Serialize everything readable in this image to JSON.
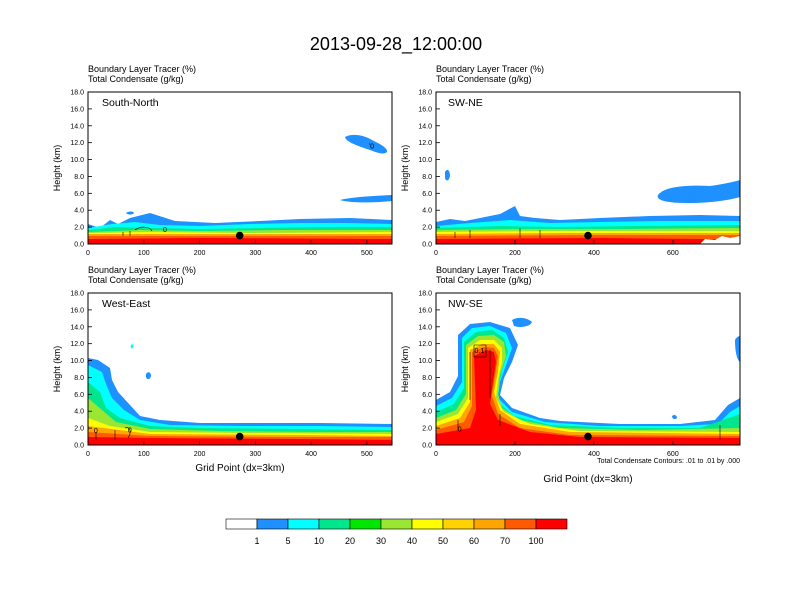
{
  "figure": {
    "title": "2013-09-28_12:00:00",
    "footnote": "Total Condensate Contours: .01 to .01 by .000"
  },
  "colorbar": {
    "colors": [
      "#ffffff",
      "#1e90ff",
      "#00ffff",
      "#00e68c",
      "#00e600",
      "#9be632",
      "#ffff00",
      "#ffd200",
      "#ffa500",
      "#ff5a00",
      "#ff0000"
    ],
    "labels": [
      "1",
      "5",
      "10",
      "20",
      "30",
      "40",
      "50",
      "60",
      "70",
      "100"
    ]
  },
  "chart_data": [
    {
      "type": "contour",
      "panel": "top-left",
      "name": "South-North",
      "title_lines": [
        "Boundary Layer Tracer    (%)",
        "Total Condensate    (g/kg)"
      ],
      "ylabel": "Height (km)",
      "xlabel": "",
      "xlim": [
        0,
        545
      ],
      "ylim": [
        0,
        18
      ],
      "xticks": [
        0,
        100,
        200,
        300,
        400,
        500
      ],
      "xtick_labels": [
        "0",
        "100",
        "200",
        "300",
        "400",
        "500"
      ],
      "yticks": [
        0,
        2,
        4,
        6,
        8,
        10,
        12,
        14,
        16,
        18
      ],
      "ytick_labels": [
        "0.0",
        "2.0",
        "4.0",
        "6.0",
        "8.0",
        "10.0",
        "12.0",
        "14.0",
        "16.0",
        "18.0"
      ],
      "marker": {
        "x": 272,
        "y": 1.0
      },
      "contour_labels": [
        {
          "x": 138,
          "y": 1.4,
          "text": "0"
        },
        {
          "x": 508,
          "y": 11.3,
          "text": "ʻ0"
        }
      ]
    },
    {
      "type": "contour",
      "panel": "top-right",
      "name": "SW-NE",
      "title_lines": [
        "Boundary Layer Tracer    (%)",
        "Total Condensate    (g/kg)"
      ],
      "ylabel": "Height (km)",
      "xlabel": "",
      "xlim": [
        0,
        770
      ],
      "ylim": [
        0,
        18
      ],
      "xticks": [
        0,
        200,
        400,
        600
      ],
      "xtick_labels": [
        "0",
        "200",
        "400",
        "600"
      ],
      "yticks": [
        0,
        2,
        4,
        6,
        8,
        10,
        12,
        14,
        16,
        18
      ],
      "ytick_labels": [
        "0.0",
        "2.0",
        "4.0",
        "6.0",
        "8.0",
        "10.0",
        "12.0",
        "14.0",
        "16.0",
        "18.0"
      ],
      "marker": {
        "x": 385,
        "y": 1.0
      },
      "contour_labels": []
    },
    {
      "type": "contour",
      "panel": "bottom-left",
      "name": "West-East",
      "title_lines": [
        "Boundary Layer Tracer    (%)",
        "Total Condensate    (g/kg)"
      ],
      "ylabel": "Height (km)",
      "xlabel": "Grid Point (dx=3km)",
      "xlim": [
        0,
        545
      ],
      "ylim": [
        0,
        18
      ],
      "xticks": [
        0,
        100,
        200,
        300,
        400,
        500
      ],
      "xtick_labels": [
        "0",
        "100",
        "200",
        "300",
        "400",
        "500"
      ],
      "yticks": [
        0,
        2,
        4,
        6,
        8,
        10,
        12,
        14,
        16,
        18
      ],
      "ytick_labels": [
        "0.0",
        "2.0",
        "4.0",
        "6.0",
        "8.0",
        "10.0",
        "12.0",
        "14.0",
        "16.0",
        "18.0"
      ],
      "marker": {
        "x": 272,
        "y": 1.0
      },
      "contour_labels": [
        {
          "x": 14,
          "y": 1.4,
          "text": "0"
        },
        {
          "x": 75,
          "y": 1.5,
          "text": "0"
        }
      ]
    },
    {
      "type": "contour",
      "panel": "bottom-right",
      "name": "NW-SE",
      "title_lines": [
        "Boundary Layer Tracer    (%)",
        "Total Condensate    (g/kg)"
      ],
      "ylabel": "Height (km)",
      "xlabel": "Grid Point (dx=3km)",
      "xlim": [
        0,
        770
      ],
      "ylim": [
        0,
        18
      ],
      "xticks": [
        0,
        200,
        400,
        600
      ],
      "xtick_labels": [
        "0",
        "200",
        "400",
        "600"
      ],
      "yticks": [
        0,
        2,
        4,
        6,
        8,
        10,
        12,
        14,
        16,
        18
      ],
      "ytick_labels": [
        "0.0",
        "2.0",
        "4.0",
        "6.0",
        "8.0",
        "10.0",
        "12.0",
        "14.0",
        "16.0",
        "18.0"
      ],
      "marker": {
        "x": 385,
        "y": 1.0
      },
      "contour_labels": [
        {
          "x": 110,
          "y": 10.9,
          "text": "0.1"
        },
        {
          "x": 60,
          "y": 1.6,
          "text": "0"
        }
      ]
    }
  ]
}
